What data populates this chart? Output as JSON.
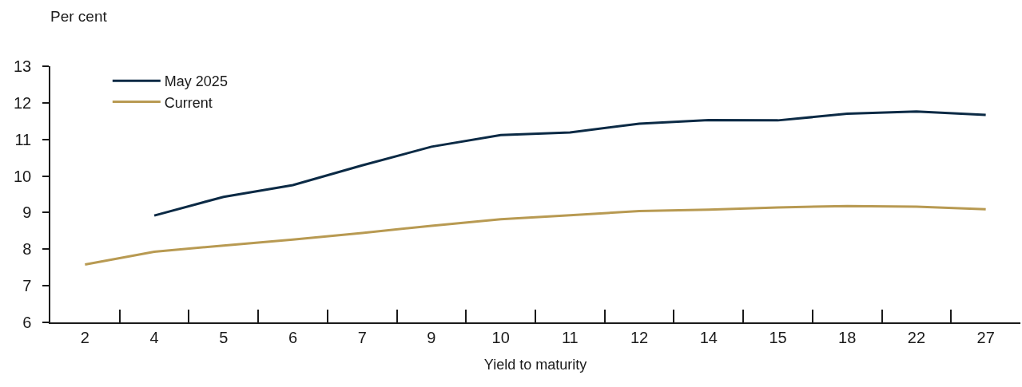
{
  "chart_data": {
    "type": "line",
    "ylabel": "Per cent",
    "xlabel": "Yield to maturity",
    "categories": [
      "2",
      "4",
      "5",
      "6",
      "7",
      "9",
      "10",
      "11",
      "12",
      "14",
      "15",
      "18",
      "22",
      "27"
    ],
    "series": [
      {
        "name": "May 2025",
        "color": "#0b2a45",
        "values": [
          null,
          8.92,
          9.43,
          9.75,
          10.29,
          10.8,
          11.12,
          11.19,
          11.43,
          11.53,
          11.52,
          11.7,
          11.76,
          11.67
        ]
      },
      {
        "name": "Current",
        "color": "#b89a52",
        "values": [
          7.58,
          7.93,
          8.1,
          8.26,
          8.44,
          8.64,
          8.82,
          8.93,
          9.04,
          9.08,
          9.14,
          9.18,
          9.16,
          9.09
        ]
      }
    ],
    "ylim": [
      6,
      13
    ],
    "yticks": [
      6,
      7,
      8,
      9,
      10,
      11,
      12,
      13
    ],
    "grid": false,
    "legend": "top left",
    "marker": "none",
    "line_style": "solid"
  }
}
